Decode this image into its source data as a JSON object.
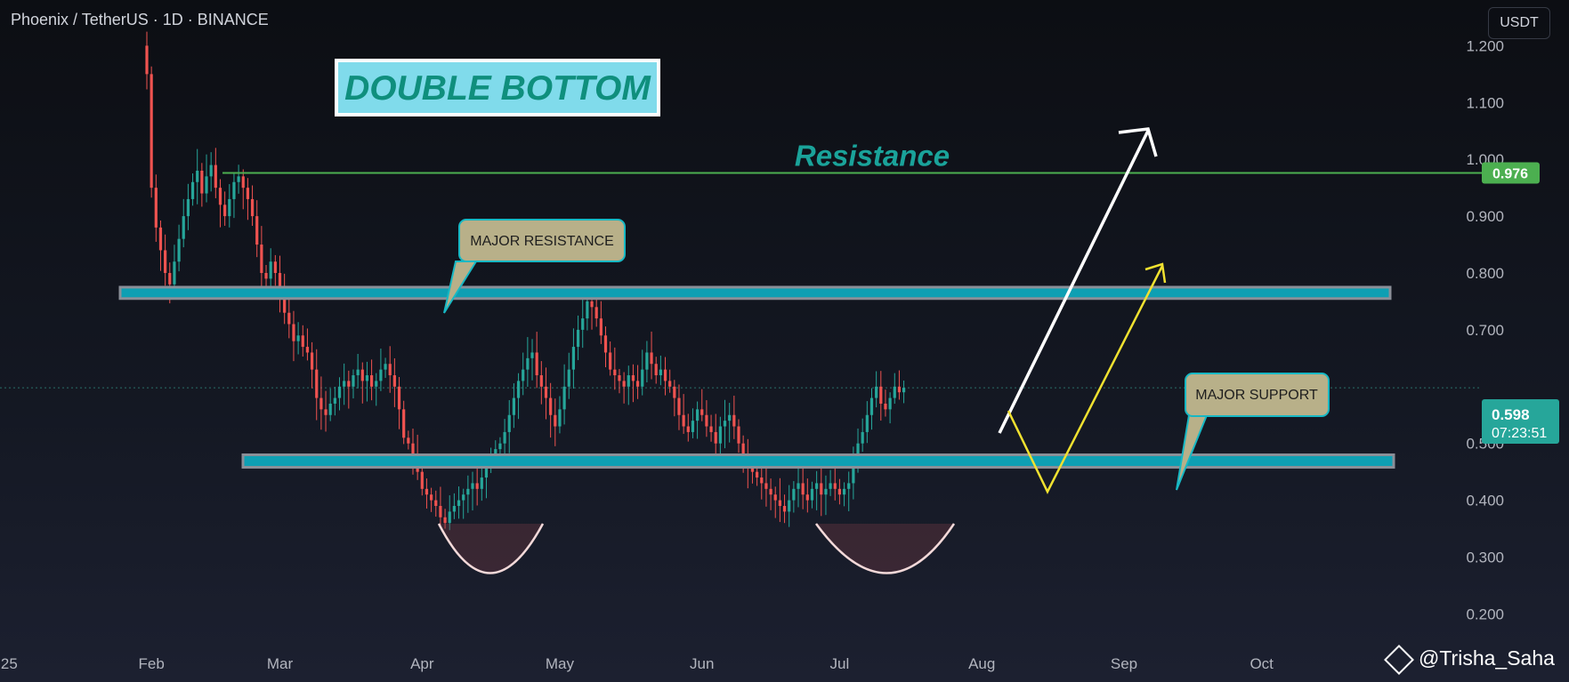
{
  "header": {
    "symbol": "Phoenix / TetherUS · 1D · BINANCE",
    "currency": "USDT"
  },
  "watermark": {
    "text": "@Trisha_Saha"
  },
  "colors": {
    "up": "#26a69a",
    "down": "#ef5350",
    "zone": "#0e9fb3",
    "resistance": "#4caf50",
    "white_arrow": "#ffffff",
    "yellow_arrow": "#f0e130"
  },
  "chart_data": {
    "type": "candlestick",
    "title": "DOUBLE BOTTOM",
    "x_start_date": "2025-01-31",
    "x_ticks": [
      {
        "label": "25",
        "date": "2025-01-01"
      },
      {
        "label": "Feb",
        "date": "2025-02-01"
      },
      {
        "label": "Mar",
        "date": "2025-03-01"
      },
      {
        "label": "Apr",
        "date": "2025-04-01"
      },
      {
        "label": "May",
        "date": "2025-05-01"
      },
      {
        "label": "Jun",
        "date": "2025-06-01"
      },
      {
        "label": "Jul",
        "date": "2025-07-01"
      },
      {
        "label": "Aug",
        "date": "2025-08-01"
      },
      {
        "label": "Sep",
        "date": "2025-09-01"
      },
      {
        "label": "Oct",
        "date": "2025-10-01"
      }
    ],
    "y_ticks": [
      "1.200",
      "1.100",
      "1.000",
      "0.900",
      "0.800",
      "0.700",
      "0.500",
      "0.400",
      "0.300",
      "0.200"
    ],
    "ylim": [
      0.2,
      1.3
    ],
    "closes": [
      1.15,
      0.95,
      0.88,
      0.84,
      0.8,
      0.78,
      0.82,
      0.86,
      0.9,
      0.93,
      0.96,
      0.98,
      0.94,
      0.97,
      0.99,
      0.95,
      0.92,
      0.9,
      0.93,
      0.96,
      0.97,
      0.95,
      0.93,
      0.9,
      0.85,
      0.8,
      0.79,
      0.82,
      0.8,
      0.76,
      0.73,
      0.71,
      0.68,
      0.69,
      0.67,
      0.66,
      0.63,
      0.58,
      0.56,
      0.55,
      0.57,
      0.58,
      0.6,
      0.61,
      0.6,
      0.62,
      0.63,
      0.61,
      0.62,
      0.6,
      0.61,
      0.63,
      0.64,
      0.62,
      0.6,
      0.56,
      0.51,
      0.5,
      0.48,
      0.45,
      0.42,
      0.41,
      0.4,
      0.39,
      0.37,
      0.36,
      0.38,
      0.39,
      0.4,
      0.41,
      0.42,
      0.43,
      0.42,
      0.44,
      0.46,
      0.48,
      0.49,
      0.5,
      0.52,
      0.55,
      0.58,
      0.61,
      0.63,
      0.65,
      0.66,
      0.62,
      0.6,
      0.58,
      0.55,
      0.53,
      0.56,
      0.6,
      0.63,
      0.67,
      0.7,
      0.72,
      0.75,
      0.74,
      0.72,
      0.69,
      0.66,
      0.63,
      0.62,
      0.61,
      0.6,
      0.62,
      0.61,
      0.6,
      0.63,
      0.66,
      0.64,
      0.62,
      0.63,
      0.61,
      0.6,
      0.58,
      0.55,
      0.53,
      0.52,
      0.54,
      0.56,
      0.55,
      0.53,
      0.52,
      0.5,
      0.53,
      0.54,
      0.55,
      0.53,
      0.5,
      0.48,
      0.46,
      0.45,
      0.44,
      0.43,
      0.42,
      0.41,
      0.4,
      0.39,
      0.38,
      0.4,
      0.42,
      0.43,
      0.41,
      0.4,
      0.42,
      0.43,
      0.41,
      0.42,
      0.43,
      0.42,
      0.41,
      0.42,
      0.43,
      0.46,
      0.5,
      0.52,
      0.55,
      0.58,
      0.6,
      0.57,
      0.56,
      0.58,
      0.6,
      0.59,
      0.598
    ],
    "annotations": {
      "resistance_label": "Resistance",
      "major_resistance": "MAJOR RESISTANCE",
      "major_support": "MAJOR SUPPORT"
    },
    "levels": {
      "resistance_line": 0.976,
      "major_resistance_zone": [
        0.755,
        0.775
      ],
      "major_support_zone": [
        0.458,
        0.48
      ]
    },
    "price_labels": {
      "resistance": "0.976",
      "last_price": "0.598",
      "countdown": "07:23:51"
    }
  }
}
